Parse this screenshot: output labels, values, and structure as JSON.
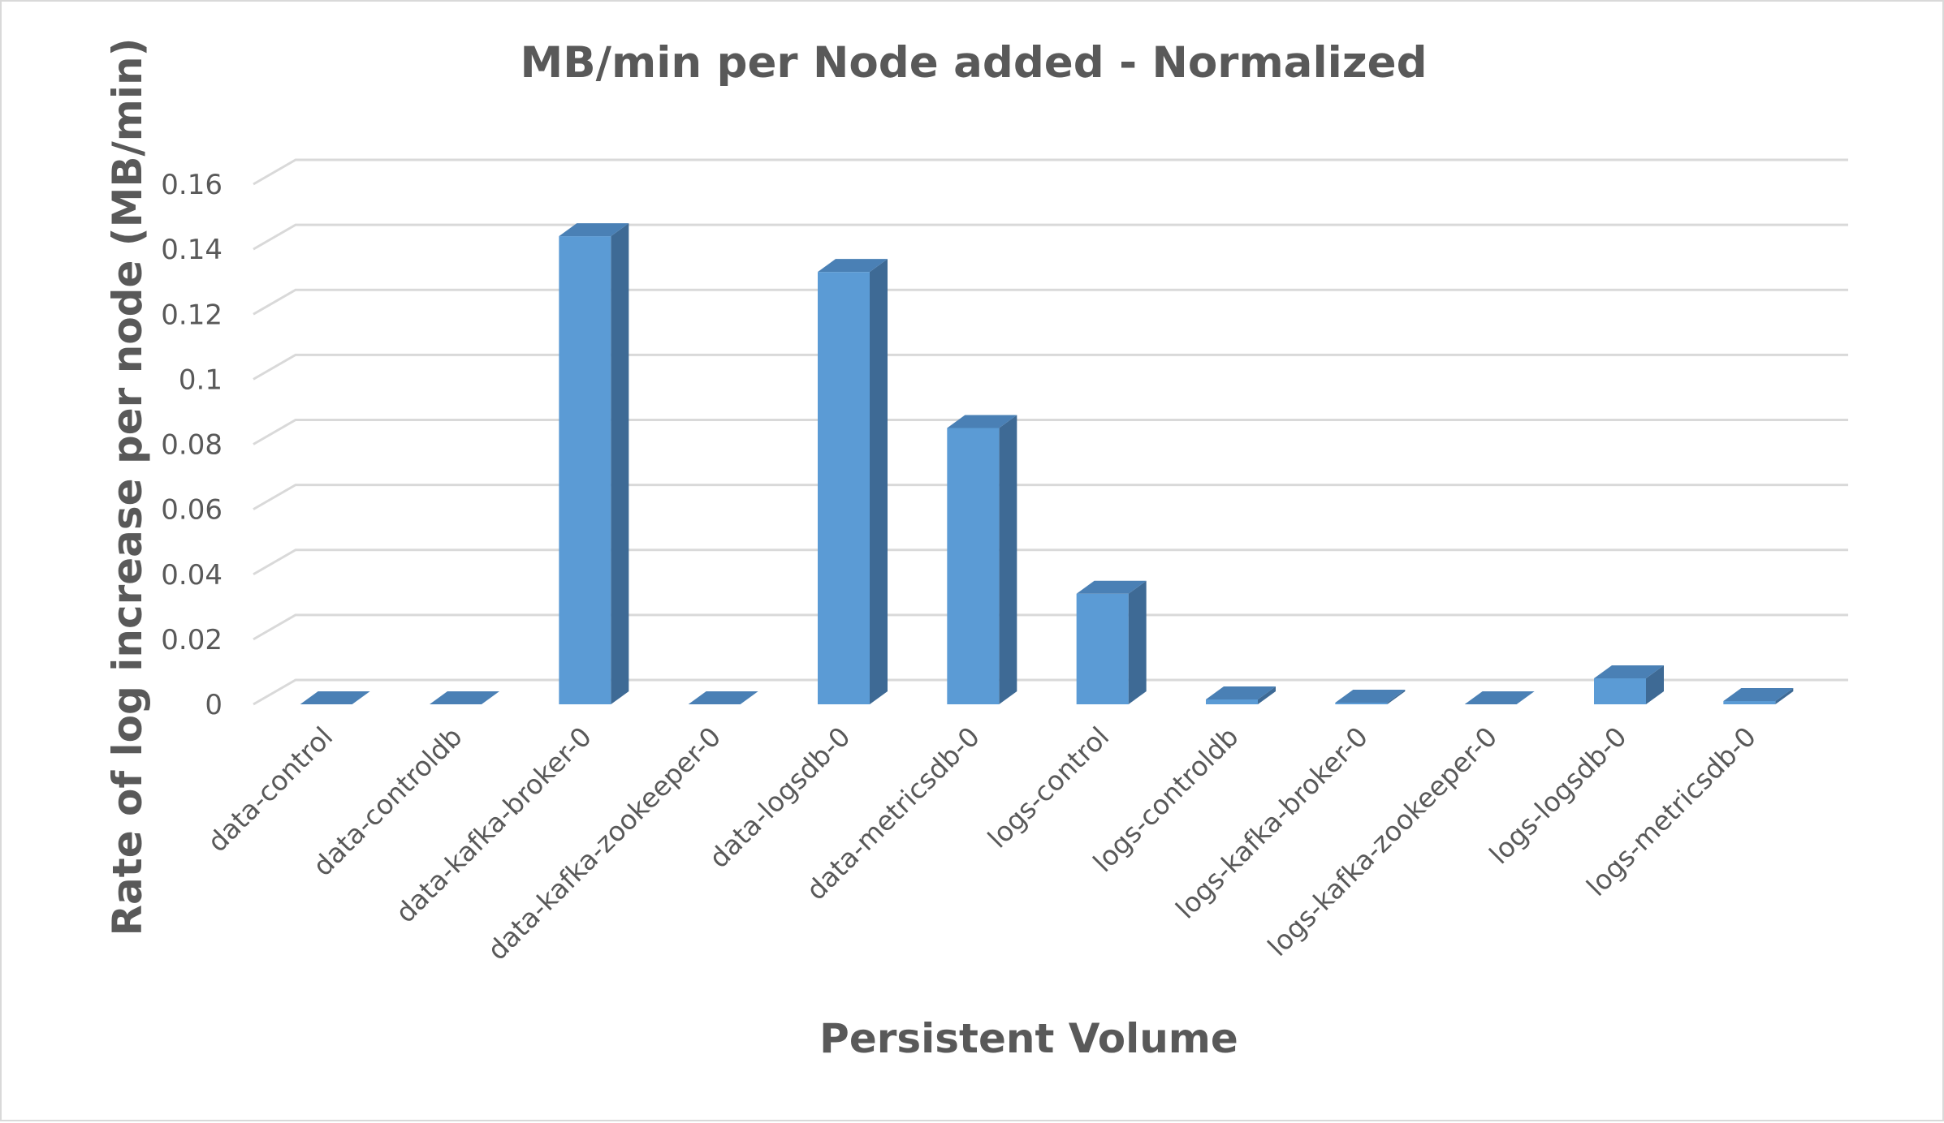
{
  "chart_data": {
    "type": "bar",
    "title": "MB/min per Node added - Normalized",
    "xlabel": "Persistent Volume",
    "ylabel": "Rate of log increase per node (MB/min)",
    "categories": [
      "data-control",
      "data-controldb",
      "data-kafka-broker-0",
      "data-kafka-zookeeper-0",
      "data-logsdb-0",
      "data-metricsdb-0",
      "logs-control",
      "logs-controldb",
      "logs-kafka-broker-0",
      "logs-kafka-zookeeper-0",
      "logs-logsdb-0",
      "logs-metricsdb-0"
    ],
    "values": [
      0,
      0,
      0.144,
      0,
      0.133,
      0.085,
      0.034,
      0.0015,
      0.0005,
      0,
      0.008,
      0.001
    ],
    "ylim": [
      0,
      0.16
    ],
    "yticks": [
      "0",
      "0.02",
      "0.04",
      "0.06",
      "0.08",
      "0.1",
      "0.12",
      "0.14",
      "0.16"
    ],
    "grid": true,
    "legend": "none",
    "style": "3d-column"
  },
  "colors": {
    "bar_front": "#5b9bd5",
    "bar_side": "#3e6a95",
    "bar_top": "#4a80b5",
    "grid": "#d9d9d9",
    "text": "#595959"
  }
}
